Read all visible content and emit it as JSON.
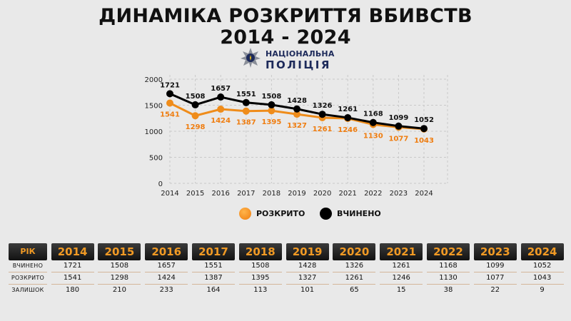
{
  "header": {
    "title_line1": "ДИНАМІКА РОЗКРИТТЯ ВБИВСТВ",
    "title_line2": "2014 - 2024",
    "logo_line1": "НАЦІОНАЛЬНА",
    "logo_line2": "ПОЛІЦІЯ"
  },
  "chart_data": {
    "type": "line",
    "x": [
      "2014",
      "2015",
      "2016",
      "2017",
      "2018",
      "2019",
      "2020",
      "2021",
      "2022",
      "2023",
      "2024"
    ],
    "series": [
      {
        "name": "ВЧИНЕНО",
        "color": "#000000",
        "values": [
          1721,
          1508,
          1657,
          1551,
          1508,
          1428,
          1326,
          1261,
          1168,
          1099,
          1052
        ]
      },
      {
        "name": "РОЗКРИТО",
        "color": "#ef8c1a",
        "values": [
          1541,
          1298,
          1424,
          1387,
          1395,
          1327,
          1261,
          1246,
          1130,
          1077,
          1043
        ]
      }
    ],
    "yticks": [
      0,
      500,
      1000,
      1500,
      2000
    ],
    "ylim": [
      0,
      2000
    ],
    "grid": true,
    "legend_position": "bottom"
  },
  "table": {
    "header_label": "РІК",
    "row_labels": [
      "ВЧИНЕНО",
      "РОЗКРИТО",
      "ЗАЛИШОК"
    ],
    "years": [
      "2014",
      "2015",
      "2016",
      "2017",
      "2018",
      "2019",
      "2020",
      "2021",
      "2022",
      "2023",
      "2024"
    ],
    "committed": [
      "1721",
      "1508",
      "1657",
      "1551",
      "1508",
      "1428",
      "1326",
      "1261",
      "1168",
      "1099",
      "1052"
    ],
    "solved": [
      "1541",
      "1298",
      "1424",
      "1387",
      "1395",
      "1327",
      "1261",
      "1246",
      "1130",
      "1077",
      "1043"
    ],
    "remaining": [
      "180",
      "210",
      "233",
      "164",
      "113",
      "101",
      "65",
      "15",
      "38",
      "22",
      "9"
    ]
  }
}
